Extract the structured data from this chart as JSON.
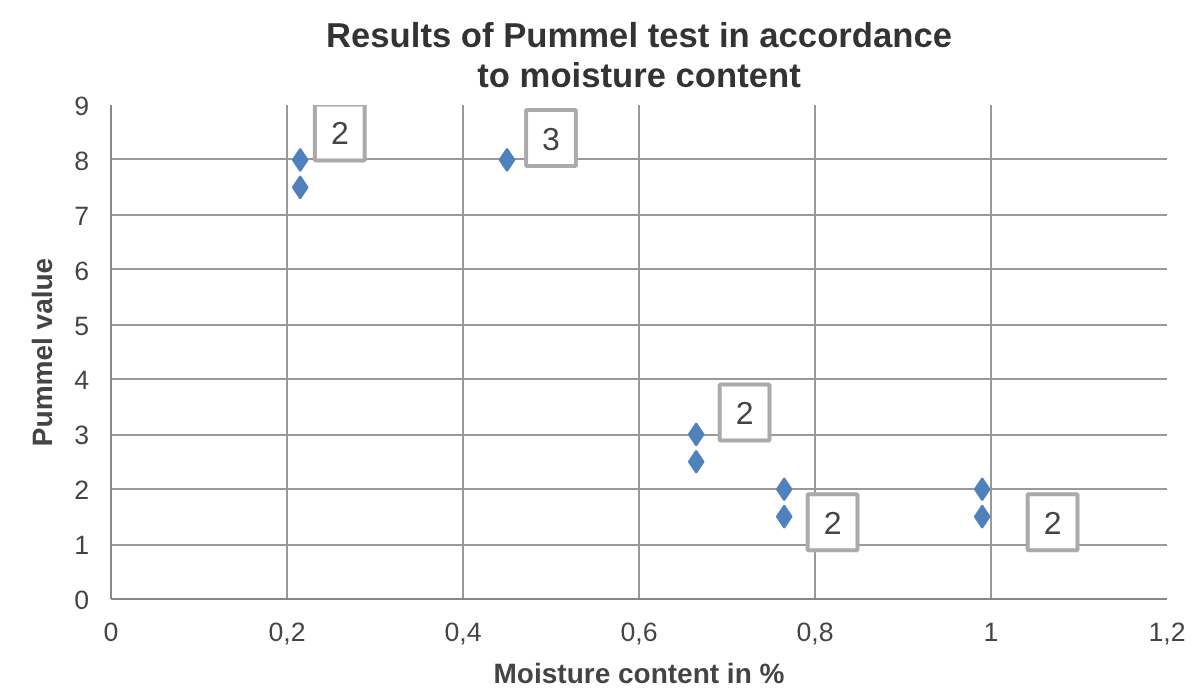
{
  "chart_data": {
    "type": "scatter",
    "title": "Results of Pummel test in accordance\nto moisture content",
    "xlabel": "Moisture content in %",
    "ylabel": "Pummel value",
    "x": [
      0.215,
      0.215,
      0.45,
      0.665,
      0.665,
      0.765,
      0.765,
      0.99,
      0.99
    ],
    "values": [
      8,
      7.5,
      8,
      3,
      2.5,
      2,
      1.5,
      2,
      1.5
    ],
    "color": "#4f81bd",
    "marker": "diamond",
    "grid": true,
    "xlim": [
      0,
      1.2
    ],
    "xticks": [
      0,
      {
        "value": 0.2,
        "label": "0,2"
      },
      {
        "value": 0.4,
        "label": "0,4"
      },
      {
        "value": 0.6,
        "label": "0,6"
      },
      {
        "value": 0.8,
        "label": "0,8"
      },
      1,
      {
        "value": 1.2,
        "label": "1,2"
      }
    ],
    "ylim": [
      0,
      9
    ],
    "yticks": [
      0,
      1,
      2,
      3,
      4,
      5,
      6,
      7,
      8,
      9
    ],
    "annotations": [
      {
        "text": "2",
        "x": 0.26,
        "y": 8.5
      },
      {
        "text": "3",
        "x": 0.5,
        "y": 8.4
      },
      {
        "text": "2",
        "x": 0.72,
        "y": 3.4
      },
      {
        "text": "2",
        "x": 0.82,
        "y": 1.4
      },
      {
        "text": "2",
        "x": 1.07,
        "y": 1.4
      }
    ]
  }
}
